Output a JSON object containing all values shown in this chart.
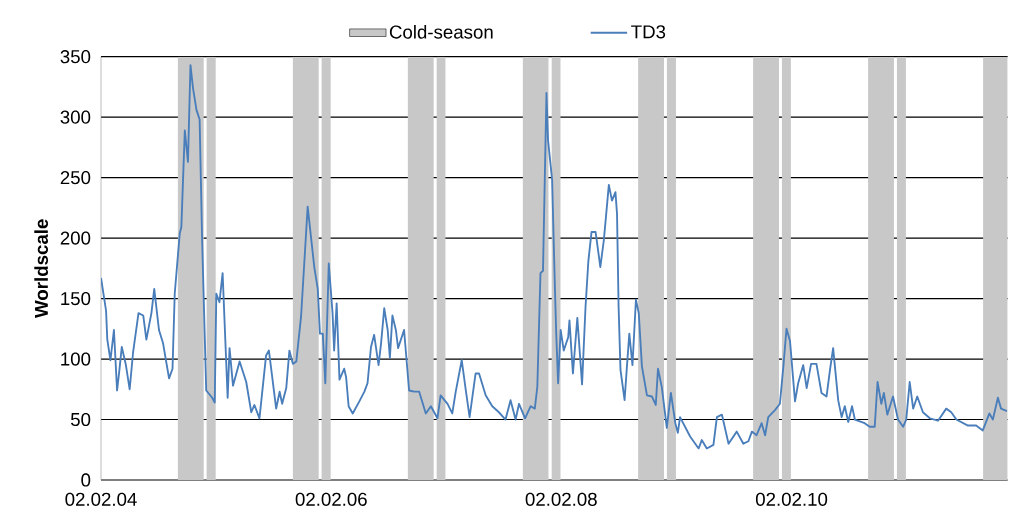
{
  "chart_data": {
    "type": "line",
    "ylabel": "Worldscale",
    "legend": "top",
    "grid": "y",
    "xlim": [
      "2004-02-02",
      "2011-12-20"
    ],
    "xticks": [
      {
        "value": "2004-02-02",
        "label": "02.02.04"
      },
      {
        "value": "2006-02-02",
        "label": "02.02.06"
      },
      {
        "value": "2008-02-02",
        "label": "02.02.08"
      },
      {
        "value": "2010-02-02",
        "label": "02.02.10"
      }
    ],
    "ylim": [
      0,
      350
    ],
    "yticks": [
      0,
      50,
      100,
      150,
      200,
      250,
      300,
      350
    ],
    "bands": [
      {
        "axis": "x",
        "from": "2004-10-03",
        "to": "2004-12-24",
        "label": "Cold-season",
        "color": "#c8c8c8"
      },
      {
        "axis": "x",
        "from": "2005-01-02",
        "to": "2005-01-31",
        "color": "#c8c8c8"
      },
      {
        "axis": "x",
        "from": "2005-10-03",
        "to": "2005-12-24",
        "color": "#c8c8c8"
      },
      {
        "axis": "x",
        "from": "2006-01-02",
        "to": "2006-01-31",
        "color": "#c8c8c8"
      },
      {
        "axis": "x",
        "from": "2006-10-03",
        "to": "2006-12-24",
        "color": "#c8c8c8"
      },
      {
        "axis": "x",
        "from": "2007-01-02",
        "to": "2007-01-31",
        "color": "#c8c8c8"
      },
      {
        "axis": "x",
        "from": "2007-10-03",
        "to": "2007-12-24",
        "color": "#c8c8c8"
      },
      {
        "axis": "x",
        "from": "2008-01-02",
        "to": "2008-01-31",
        "color": "#c8c8c8"
      },
      {
        "axis": "x",
        "from": "2008-10-03",
        "to": "2008-12-24",
        "color": "#c8c8c8"
      },
      {
        "axis": "x",
        "from": "2009-01-02",
        "to": "2009-01-31",
        "color": "#c8c8c8"
      },
      {
        "axis": "x",
        "from": "2009-10-03",
        "to": "2009-12-24",
        "color": "#c8c8c8"
      },
      {
        "axis": "x",
        "from": "2010-01-02",
        "to": "2010-01-31",
        "color": "#c8c8c8"
      },
      {
        "axis": "x",
        "from": "2010-10-03",
        "to": "2010-12-24",
        "color": "#c8c8c8"
      },
      {
        "axis": "x",
        "from": "2011-01-02",
        "to": "2011-01-31",
        "color": "#c8c8c8"
      },
      {
        "axis": "x",
        "from": "2011-10-03",
        "to": "2011-12-20",
        "color": "#c8c8c8"
      }
    ],
    "x": [
      "2004-02-02",
      "2004-02-18",
      "2004-02-22",
      "2004-03-03",
      "2004-03-14",
      "2004-03-24",
      "2004-03-31",
      "2004-04-08",
      "2004-04-21",
      "2004-05-03",
      "2004-05-14",
      "2004-05-31",
      "2004-06-15",
      "2004-06-25",
      "2004-07-11",
      "2004-07-20",
      "2004-08-04",
      "2004-08-17",
      "2004-09-05",
      "2004-09-16",
      "2004-09-23",
      "2004-10-09",
      "2004-10-14",
      "2004-10-25",
      "2004-11-04",
      "2004-11-12",
      "2004-11-20",
      "2004-12-01",
      "2004-12-11",
      "2004-12-19",
      "2005-01-01",
      "2005-01-20",
      "2005-01-28",
      "2005-02-02",
      "2005-02-12",
      "2005-02-22",
      "2005-03-10",
      "2005-03-16",
      "2005-03-27",
      "2005-04-17",
      "2005-05-08",
      "2005-05-24",
      "2005-06-03",
      "2005-06-19",
      "2005-07-10",
      "2005-07-19",
      "2005-08-11",
      "2005-08-22",
      "2005-08-30",
      "2005-09-12",
      "2005-09-22",
      "2005-10-03",
      "2005-10-14",
      "2005-10-29",
      "2005-11-19",
      "2005-12-10",
      "2005-12-21",
      "2005-12-28",
      "2006-01-06",
      "2006-01-14",
      "2006-01-25",
      "2006-02-06",
      "2006-02-11",
      "2006-02-19",
      "2006-02-28",
      "2006-03-15",
      "2006-03-21",
      "2006-03-29",
      "2006-04-11",
      "2006-05-02",
      "2006-05-18",
      "2006-05-28",
      "2006-06-08",
      "2006-06-18",
      "2006-07-02",
      "2006-07-10",
      "2006-07-20",
      "2006-07-31",
      "2006-08-07",
      "2006-08-15",
      "2006-08-26",
      "2006-09-02",
      "2006-09-21",
      "2006-10-07",
      "2006-10-23",
      "2006-11-08",
      "2006-11-29",
      "2006-12-15",
      "2007-01-05",
      "2007-01-15",
      "2007-02-06",
      "2007-02-21",
      "2007-03-04",
      "2007-03-23",
      "2007-04-05",
      "2007-04-17",
      "2007-05-06",
      "2007-05-17",
      "2007-06-07",
      "2007-06-28",
      "2007-07-19",
      "2007-08-09",
      "2007-08-25",
      "2007-09-10",
      "2007-09-21",
      "2007-10-10",
      "2007-10-28",
      "2007-11-10",
      "2007-11-18",
      "2007-11-28",
      "2007-12-06",
      "2007-12-17",
      "2007-12-22",
      "2008-01-04",
      "2008-01-13",
      "2008-01-17",
      "2008-01-23",
      "2008-01-31",
      "2008-02-10",
      "2008-02-24",
      "2008-02-28",
      "2008-03-10",
      "2008-03-24",
      "2008-04-08",
      "2008-04-19",
      "2008-04-28",
      "2008-05-08",
      "2008-05-21",
      "2008-06-05",
      "2008-06-16",
      "2008-06-23",
      "2008-07-02",
      "2008-07-12",
      "2008-07-23",
      "2008-07-28",
      "2008-08-02",
      "2008-08-08",
      "2008-08-21",
      "2008-08-29",
      "2008-09-05",
      "2008-09-15",
      "2008-09-26",
      "2008-10-05",
      "2008-10-15",
      "2008-10-31",
      "2008-11-16",
      "2008-11-28",
      "2008-12-05",
      "2008-12-17",
      "2009-01-02",
      "2009-01-15",
      "2009-01-29",
      "2009-02-06",
      "2009-02-13",
      "2009-03-01",
      "2009-03-17",
      "2009-04-13",
      "2009-04-23",
      "2009-05-09",
      "2009-05-30",
      "2009-06-10",
      "2009-06-26",
      "2009-07-17",
      "2009-08-12",
      "2009-09-02",
      "2009-09-18",
      "2009-09-29",
      "2009-10-14",
      "2009-10-30",
      "2009-11-10",
      "2009-11-20",
      "2009-12-12",
      "2009-12-27",
      "2010-01-07",
      "2010-01-17",
      "2010-01-28",
      "2010-02-13",
      "2010-02-23",
      "2010-03-11",
      "2010-03-22",
      "2010-04-05",
      "2010-04-22",
      "2010-05-08",
      "2010-05-24",
      "2010-06-04",
      "2010-06-14",
      "2010-06-30",
      "2010-07-11",
      "2010-07-21",
      "2010-08-01",
      "2010-08-13",
      "2010-08-22",
      "2010-09-22",
      "2010-10-08",
      "2010-10-24",
      "2010-11-02",
      "2010-11-14",
      "2010-11-22",
      "2010-12-03",
      "2010-12-21",
      "2011-01-06",
      "2011-01-22",
      "2011-02-01",
      "2011-02-12",
      "2011-02-23",
      "2011-03-08",
      "2011-03-26",
      "2011-04-17",
      "2011-05-13",
      "2011-06-08",
      "2011-06-24",
      "2011-07-10",
      "2011-08-16",
      "2011-09-11",
      "2011-10-02",
      "2011-10-23",
      "2011-11-03",
      "2011-11-19",
      "2011-11-29",
      "2011-12-18"
    ],
    "series": [
      {
        "name": "TD3",
        "color": "#4a7ebb",
        "values": [
          167,
          140,
          116,
          99,
          124,
          74,
          90,
          110,
          95,
          75,
          106,
          138,
          136,
          116,
          138,
          158,
          124,
          113,
          84,
          92,
          154,
          204,
          209,
          289,
          263,
          343,
          324,
          306,
          298,
          198,
          74,
          68,
          64,
          154,
          147,
          171,
          68,
          109,
          78,
          98,
          81,
          56,
          62,
          51,
          103,
          107,
          59,
          73,
          63,
          76,
          107,
          96,
          98,
          135,
          226,
          176,
          158,
          121,
          121,
          80,
          179,
          138,
          107,
          146,
          83,
          92,
          85,
          61,
          55,
          65,
          73,
          80,
          110,
          120,
          95,
          113,
          142,
          124,
          101,
          136,
          124,
          109,
          124,
          74,
          73,
          73,
          55,
          61,
          51,
          70,
          63,
          55,
          73,
          99,
          74,
          52,
          88,
          88,
          70,
          61,
          56,
          50,
          66,
          50,
          63,
          51,
          61,
          59,
          77,
          171,
          173,
          320,
          281,
          248,
          157,
          121,
          80,
          124,
          107,
          118,
          132,
          88,
          134,
          79,
          143,
          181,
          205,
          205,
          176,
          198,
          218,
          244,
          231,
          238,
          220,
          143,
          91,
          66,
          96,
          121,
          95,
          149,
          138,
          94,
          70,
          69,
          62,
          92,
          77,
          43,
          72,
          47,
          39,
          52,
          44,
          36,
          26,
          33,
          26,
          29,
          52,
          54,
          30,
          40,
          30,
          32,
          40,
          37,
          47,
          37,
          52,
          58,
          63,
          94,
          125,
          115,
          65,
          80,
          95,
          76,
          96,
          96,
          72,
          69,
          91,
          109,
          66,
          52,
          61,
          48,
          61,
          50,
          47,
          44,
          44,
          81,
          63,
          72,
          54,
          69,
          50,
          44,
          50,
          81,
          59,
          69,
          56,
          51,
          49,
          59,
          56,
          50,
          45,
          45,
          41,
          55,
          50,
          68,
          59,
          57
        ]
      }
    ]
  }
}
